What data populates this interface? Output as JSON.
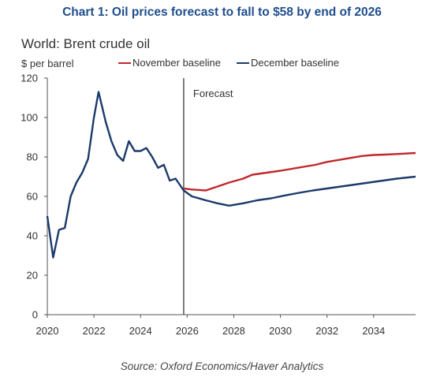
{
  "chart_data": {
    "type": "line",
    "title": "Chart 1: Oil prices forecast to fall to $58 by end of 2026",
    "subtitle": "World: Brent crude oil",
    "ylabel": "$ per barrel",
    "xlabel": "",
    "source": "Source: Oxford Economics/Haver Analytics",
    "annotation": "Forecast",
    "forecast_start": 2025.85,
    "xlim": [
      2020,
      2035.8
    ],
    "ylim": [
      0,
      120
    ],
    "x_ticks": [
      "2020",
      "2022",
      "2024",
      "2026",
      "2028",
      "2030",
      "2032",
      "2034"
    ],
    "y_ticks": [
      "0",
      "20",
      "40",
      "60",
      "80",
      "100",
      "120"
    ],
    "legend_position": "top",
    "grid": false,
    "series": [
      {
        "name": "November baseline",
        "color": "#c0282d",
        "points": [
          [
            2025.85,
            64
          ],
          [
            2026.2,
            63.5
          ],
          [
            2026.8,
            63
          ],
          [
            2027.3,
            65
          ],
          [
            2027.8,
            67
          ],
          [
            2028.4,
            69
          ],
          [
            2028.8,
            71
          ],
          [
            2029.4,
            72
          ],
          [
            2030.0,
            73
          ],
          [
            2030.5,
            74
          ],
          [
            2031.0,
            75
          ],
          [
            2031.5,
            76
          ],
          [
            2032.0,
            77.5
          ],
          [
            2032.5,
            78.5
          ],
          [
            2033.0,
            79.5
          ],
          [
            2033.5,
            80.5
          ],
          [
            2034.0,
            81
          ],
          [
            2034.5,
            81.2
          ],
          [
            2035.0,
            81.5
          ],
          [
            2035.8,
            82
          ]
        ]
      },
      {
        "name": "December baseline",
        "color": "#1b3a6b",
        "points": [
          [
            2020.0,
            50
          ],
          [
            2020.25,
            29
          ],
          [
            2020.5,
            43
          ],
          [
            2020.75,
            44
          ],
          [
            2021.0,
            60
          ],
          [
            2021.25,
            67
          ],
          [
            2021.5,
            72
          ],
          [
            2021.75,
            79
          ],
          [
            2022.0,
            100
          ],
          [
            2022.2,
            113
          ],
          [
            2022.5,
            98
          ],
          [
            2022.75,
            88
          ],
          [
            2023.0,
            81
          ],
          [
            2023.25,
            78
          ],
          [
            2023.5,
            88
          ],
          [
            2023.75,
            83
          ],
          [
            2024.0,
            83
          ],
          [
            2024.25,
            84.5
          ],
          [
            2024.5,
            80
          ],
          [
            2024.75,
            74.5
          ],
          [
            2025.0,
            76
          ],
          [
            2025.25,
            68
          ],
          [
            2025.5,
            69
          ],
          [
            2025.85,
            63
          ],
          [
            2026.2,
            60
          ],
          [
            2026.8,
            58
          ],
          [
            2027.3,
            56.5
          ],
          [
            2027.8,
            55.3
          ],
          [
            2028.4,
            56.5
          ],
          [
            2029.0,
            58
          ],
          [
            2029.6,
            59
          ],
          [
            2030.2,
            60.5
          ],
          [
            2030.8,
            61.8
          ],
          [
            2031.4,
            63
          ],
          [
            2032.0,
            64
          ],
          [
            2032.6,
            65
          ],
          [
            2033.2,
            66
          ],
          [
            2033.8,
            67
          ],
          [
            2034.4,
            68
          ],
          [
            2035.0,
            69
          ],
          [
            2035.8,
            70
          ]
        ]
      }
    ]
  }
}
